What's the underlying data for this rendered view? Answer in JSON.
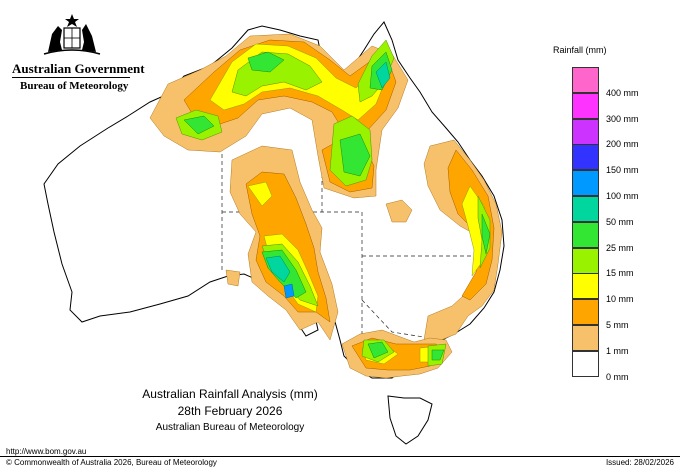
{
  "header": {
    "government": "Australian Government",
    "bureau": "Bureau of Meteorology"
  },
  "crest": {
    "icon": "coat-of-arms-icon"
  },
  "title": {
    "line1": "Australian Rainfall Analysis (mm)",
    "line2": "28th February 2026",
    "line3": "Australian Bureau of Meteorology"
  },
  "legend": {
    "title": "Rainfall (mm)",
    "items": [
      {
        "label": "",
        "color": "#ff66cc"
      },
      {
        "label": "400 mm",
        "color": "#ff33ff"
      },
      {
        "label": "300 mm",
        "color": "#cc33ff"
      },
      {
        "label": "200 mm",
        "color": "#3333ff"
      },
      {
        "label": "150 mm",
        "color": "#0099ff"
      },
      {
        "label": "100 mm",
        "color": "#00d69e"
      },
      {
        "label": "50 mm",
        "color": "#33e633"
      },
      {
        "label": "25 mm",
        "color": "#99f200"
      },
      {
        "label": "15 mm",
        "color": "#ffff00"
      },
      {
        "label": "10 mm",
        "color": "#ffa500"
      },
      {
        "label": "5 mm",
        "color": "#f7c06a"
      },
      {
        "label": "1 mm",
        "color": "#ffffff"
      },
      {
        "label": "0 mm",
        "color": ""
      }
    ]
  },
  "footer": {
    "url": "http://www.bom.gov.au",
    "copyright": "© Commonwealth of Australia 2026, Bureau of Meteorology",
    "issued": "Issued: 28/02/2026"
  }
}
